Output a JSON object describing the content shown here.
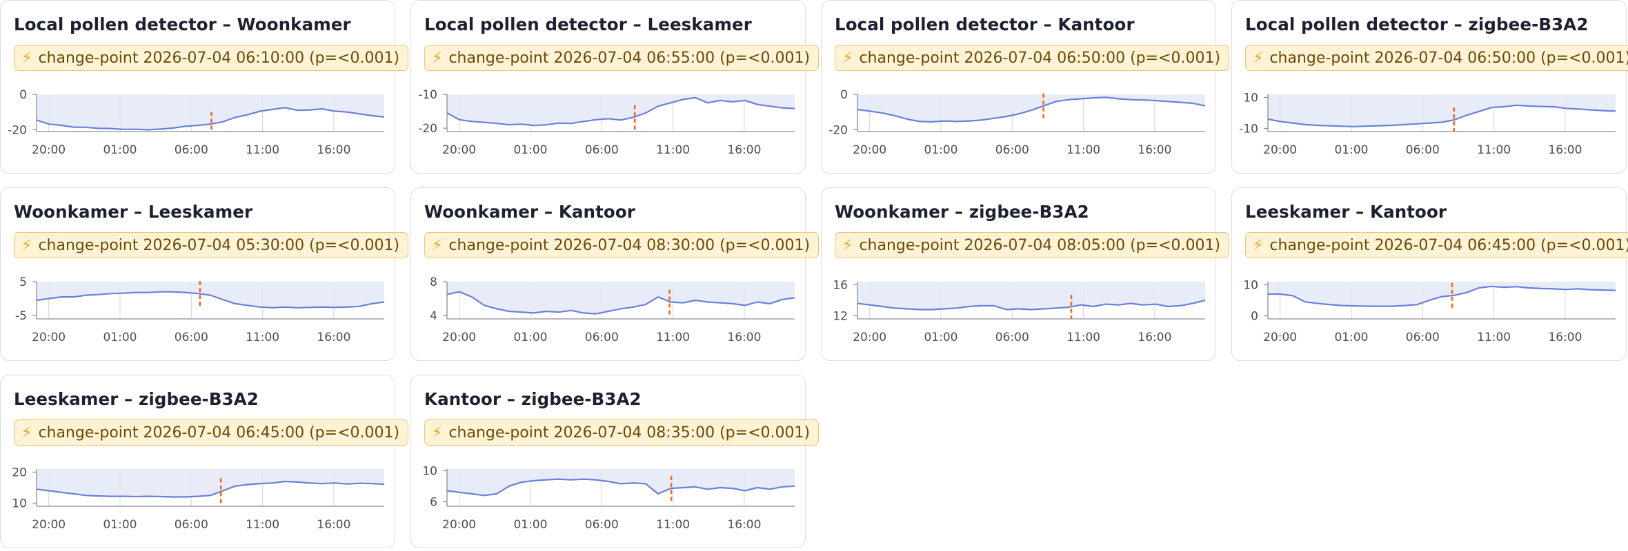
{
  "colors": {
    "line": "#6a80d8",
    "area": "#e4e9f8",
    "grid": "#d9dbe2",
    "changepoint": "#f06a1c",
    "badge_bg": "#fff3d6",
    "badge_border": "#f0c46e",
    "badge_text": "#6b4a08",
    "bolt": "#f5a623"
  },
  "icons": {
    "badge": "lightning-bolt-icon"
  },
  "cards": [
    {
      "title": "Local pollen detector – Woonkamer",
      "badge": "change-point 2026-07-04 06:10:00 (p=<0.001)",
      "chart_data": {
        "type": "area",
        "x_ticks": [
          "20:00",
          "01:00",
          "06:00",
          "11:00",
          "16:00"
        ],
        "y_ticks": [
          "0",
          "-20"
        ],
        "ylim": [
          -21,
          0
        ],
        "changepoint_x": 0.503,
        "values": [
          -14.5,
          -16.8,
          -17.5,
          -18.5,
          -18.6,
          -19.2,
          -19.3,
          -19.8,
          -19.7,
          -20,
          -19.6,
          -19,
          -18,
          -17.5,
          -16.8,
          -15.5,
          -13,
          -11.5,
          -9.5,
          -8.5,
          -7.5,
          -9,
          -8.8,
          -8.2,
          -9.5,
          -10,
          -11,
          -12,
          -12.8
        ]
      }
    },
    {
      "title": "Local pollen detector – Leeskamer",
      "badge": "change-point 2026-07-04 06:55:00 (p=<0.001)",
      "chart_data": {
        "type": "area",
        "x_ticks": [
          "20:00",
          "01:00",
          "06:00",
          "11:00",
          "16:00"
        ],
        "y_ticks": [
          "-10",
          "-20"
        ],
        "ylim": [
          -21,
          -10
        ],
        "changepoint_x": 0.54,
        "values": [
          -15.5,
          -17.5,
          -18,
          -18.3,
          -18.6,
          -19,
          -18.8,
          -19.2,
          -19,
          -18.5,
          -18.6,
          -18,
          -17.5,
          -17.2,
          -17.6,
          -16.8,
          -15.5,
          -13.5,
          -12.5,
          -11.5,
          -11,
          -12.5,
          -11.8,
          -12.2,
          -11.8,
          -13,
          -13.5,
          -14,
          -14.2
        ]
      }
    },
    {
      "title": "Local pollen detector – Kantoor",
      "badge": "change-point 2026-07-04 06:50:00 (p=<0.001)",
      "chart_data": {
        "type": "area",
        "x_ticks": [
          "20:00",
          "01:00",
          "06:00",
          "11:00",
          "16:00"
        ],
        "y_ticks": [
          "0",
          "-20"
        ],
        "ylim": [
          -21,
          0
        ],
        "changepoint_x": 0.535,
        "values": [
          -8.5,
          -9.5,
          -10.5,
          -12,
          -14,
          -15.3,
          -15.5,
          -15,
          -15.3,
          -15,
          -14.5,
          -13.5,
          -12.5,
          -11,
          -9,
          -6.5,
          -4,
          -3,
          -2.5,
          -2,
          -1.7,
          -2.5,
          -3,
          -3.2,
          -3.5,
          -4,
          -4.5,
          -5,
          -6.5
        ]
      }
    },
    {
      "title": "Local pollen detector – zigbee-B3A2",
      "badge": "change-point 2026-07-04 06:50:00 (p=<0.001)",
      "chart_data": {
        "type": "area",
        "x_ticks": [
          "20:00",
          "01:00",
          "06:00",
          "11:00",
          "16:00"
        ],
        "y_ticks": [
          "10",
          "-10"
        ],
        "ylim": [
          -12,
          12
        ],
        "changepoint_x": 0.535,
        "values": [
          -4,
          -5.5,
          -6.5,
          -7.5,
          -8,
          -8.3,
          -8.6,
          -8.8,
          -8.5,
          -8.2,
          -8,
          -7.5,
          -7,
          -6.5,
          -6,
          -4.5,
          -1.5,
          1,
          3.5,
          4,
          5,
          4.5,
          4.2,
          4,
          3,
          2.5,
          2,
          1.5,
          1.2
        ]
      }
    },
    {
      "title": "Woonkamer – Leeskamer",
      "badge": "change-point 2026-07-04 05:30:00 (p=<0.001)",
      "chart_data": {
        "type": "area",
        "x_ticks": [
          "20:00",
          "01:00",
          "06:00",
          "11:00",
          "16:00"
        ],
        "y_ticks": [
          "5",
          "-5"
        ],
        "ylim": [
          -6,
          5
        ],
        "changepoint_x": 0.47,
        "values": [
          -0.5,
          0,
          0.5,
          0.5,
          1,
          1.2,
          1.5,
          1.6,
          1.8,
          1.8,
          2,
          2,
          1.8,
          1.5,
          1,
          -0.3,
          -1.5,
          -2,
          -2.5,
          -2.7,
          -2.5,
          -2.7,
          -2.6,
          -2.5,
          -2.6,
          -2.5,
          -2.3,
          -1.5,
          -1
        ]
      }
    },
    {
      "title": "Woonkamer – Kantoor",
      "badge": "change-point 2026-07-04 08:30:00 (p=<0.001)",
      "chart_data": {
        "type": "area",
        "x_ticks": [
          "20:00",
          "01:00",
          "06:00",
          "11:00",
          "16:00"
        ],
        "y_ticks": [
          "8",
          "4"
        ],
        "ylim": [
          3.6,
          8
        ],
        "changepoint_x": 0.64,
        "values": [
          6.5,
          6.8,
          6.2,
          5.2,
          4.8,
          4.5,
          4.4,
          4.3,
          4.5,
          4.4,
          4.6,
          4.3,
          4.2,
          4.5,
          4.8,
          5,
          5.3,
          6.2,
          5.6,
          5.5,
          5.8,
          5.6,
          5.5,
          5.4,
          5.2,
          5.6,
          5.4,
          5.9,
          6.1
        ]
      }
    },
    {
      "title": "Woonkamer – zigbee-B3A2",
      "badge": "change-point 2026-07-04 08:05:00 (p=<0.001)",
      "chart_data": {
        "type": "area",
        "x_ticks": [
          "20:00",
          "01:00",
          "06:00",
          "11:00",
          "16:00"
        ],
        "y_ticks": [
          "16",
          "12"
        ],
        "ylim": [
          11.6,
          16.4
        ],
        "changepoint_x": 0.615,
        "values": [
          13.6,
          13.4,
          13.2,
          13,
          12.9,
          12.8,
          12.8,
          12.9,
          13,
          13.2,
          13.3,
          13.3,
          12.8,
          12.9,
          12.8,
          12.9,
          13,
          13.1,
          13.4,
          13.2,
          13.5,
          13.4,
          13.6,
          13.4,
          13.5,
          13.2,
          13.3,
          13.6,
          14
        ]
      }
    },
    {
      "title": "Leeskamer – Kantoor",
      "badge": "change-point 2026-07-04 06:45:00 (p=<0.001)",
      "chart_data": {
        "type": "area",
        "x_ticks": [
          "20:00",
          "01:00",
          "06:00",
          "11:00",
          "16:00"
        ],
        "y_ticks": [
          "10",
          "0"
        ],
        "ylim": [
          -1,
          11
        ],
        "changepoint_x": 0.53,
        "values": [
          7,
          7,
          6.5,
          4.5,
          4,
          3.6,
          3.3,
          3.2,
          3.1,
          3.1,
          3.1,
          3.3,
          3.6,
          5,
          6.2,
          6.6,
          7.5,
          9,
          9.5,
          9.2,
          9.4,
          9,
          8.8,
          8.7,
          8.5,
          8.7,
          8.4,
          8.3,
          8.2
        ]
      }
    },
    {
      "title": "Leeskamer – zigbee-B3A2",
      "badge": "change-point 2026-07-04 06:45:00 (p=<0.001)",
      "chart_data": {
        "type": "area",
        "x_ticks": [
          "20:00",
          "01:00",
          "06:00",
          "11:00",
          "16:00"
        ],
        "y_ticks": [
          "20",
          "10"
        ],
        "ylim": [
          9,
          21
        ],
        "changepoint_x": 0.53,
        "values": [
          14.5,
          14,
          13.5,
          13,
          12.5,
          12.3,
          12.2,
          12.2,
          12.1,
          12.2,
          12.1,
          12,
          12,
          12.2,
          12.5,
          14,
          15.5,
          16,
          16.3,
          16.5,
          17,
          16.8,
          16.5,
          16.3,
          16.5,
          16.2,
          16.4,
          16.3,
          16.1
        ]
      }
    },
    {
      "title": "Kantoor – zigbee-B3A2",
      "badge": "change-point 2026-07-04 08:35:00 (p=<0.001)",
      "chart_data": {
        "type": "area",
        "x_ticks": [
          "20:00",
          "01:00",
          "06:00",
          "11:00",
          "16:00"
        ],
        "y_ticks": [
          "10",
          "6"
        ],
        "ylim": [
          5.4,
          10.2
        ],
        "changepoint_x": 0.645,
        "values": [
          7.4,
          7.2,
          7,
          6.8,
          7,
          8,
          8.5,
          8.7,
          8.8,
          8.9,
          8.8,
          8.9,
          8.8,
          8.6,
          8.3,
          8.4,
          8.3,
          7,
          7.7,
          7.8,
          7.9,
          7.6,
          7.8,
          7.7,
          7.4,
          7.8,
          7.6,
          7.9,
          8
        ]
      }
    }
  ]
}
